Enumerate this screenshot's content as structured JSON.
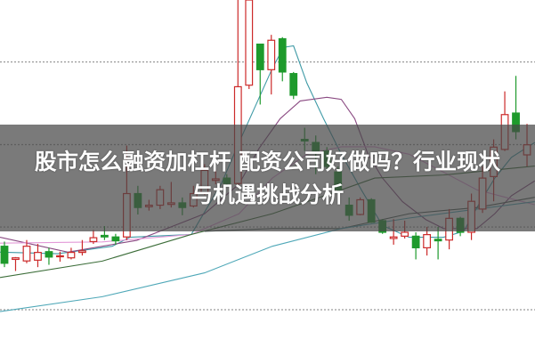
{
  "title": {
    "line1": "股市怎么融资加杠杆 配资公司好做吗？行业现状",
    "line2": "与机遇挑战分析"
  },
  "chart_data": {
    "type": "candlestick",
    "grid": "horizontal-dotted",
    "gridlines": [
      80,
      53.3,
      26.7,
      0
    ],
    "ylim": [
      0,
      100
    ],
    "colors": {
      "up": "#cc2a2a",
      "down": "#1e9a2c",
      "grid": "#9a9a9a"
    },
    "candles": [
      [
        20.5,
        22,
        13.75,
        15
      ],
      [
        16.25,
        17,
        12.5,
        16.75
      ],
      [
        15.75,
        22.5,
        15,
        20.5
      ],
      [
        16,
        21.25,
        13.75,
        18.5
      ],
      [
        18.75,
        20,
        14.5,
        17
      ],
      [
        17.1,
        18.75,
        15.5,
        17.4
      ],
      [
        16.75,
        20,
        16.25,
        18.5
      ],
      [
        18.5,
        22.5,
        17.5,
        19
      ],
      [
        22,
        25.75,
        21.25,
        23.25
      ],
      [
        24,
        27,
        22.5,
        23.5
      ],
      [
        23.5,
        24.5,
        21,
        22.25
      ],
      [
        23.5,
        53,
        22.5,
        37.5
      ],
      [
        37.5,
        40,
        30.75,
        33
      ],
      [
        33.25,
        35.5,
        32,
        33.75
      ],
      [
        33.75,
        40,
        32.5,
        38.75
      ],
      [
        34,
        41.25,
        33,
        34.5
      ],
      [
        34.5,
        36.25,
        30.5,
        33
      ],
      [
        33.5,
        40,
        33,
        37.5
      ],
      [
        37.5,
        47,
        37,
        45
      ],
      [
        41.75,
        45,
        40.5,
        42.25
      ],
      [
        42.5,
        43.75,
        40,
        40.75
      ],
      [
        40.75,
        100,
        40,
        72
      ],
      [
        72.5,
        100,
        71.25,
        100
      ],
      [
        85.75,
        85.75,
        66.25,
        77.5
      ],
      [
        77.5,
        88.75,
        69.5,
        87
      ],
      [
        87.5,
        88,
        73.75,
        76.75
      ],
      [
        76.25,
        76.75,
        68,
        69.25
      ],
      [
        55,
        58.75,
        51.25,
        54.5
      ],
      [
        54,
        56.25,
        43.75,
        51.25
      ],
      [
        51.25,
        52.5,
        45,
        46.25
      ],
      [
        44.5,
        46.25,
        37.5,
        38.75
      ],
      [
        33.75,
        36.25,
        28.75,
        30.5
      ],
      [
        30.75,
        36.25,
        30.5,
        35.5
      ],
      [
        35.5,
        36,
        28,
        28.25
      ],
      [
        28.75,
        29.25,
        24.5,
        25
      ],
      [
        23,
        29.25,
        21,
        23.5
      ],
      [
        23.75,
        28.75,
        23,
        25
      ],
      [
        23.75,
        25,
        16.25,
        20
      ],
      [
        20,
        26.75,
        17.5,
        24.25
      ],
      [
        22.75,
        26.75,
        16.25,
        22.25
      ],
      [
        22.5,
        32.5,
        19.5,
        29.5
      ],
      [
        29.5,
        30,
        23.75,
        25
      ],
      [
        25,
        37.5,
        22.5,
        35
      ],
      [
        32.5,
        46.25,
        31.25,
        42.5
      ],
      [
        43,
        55,
        35,
        52.5
      ],
      [
        51.75,
        70.5,
        51.25,
        63
      ],
      [
        63.5,
        75.5,
        55,
        57.5
      ],
      [
        50,
        60,
        46.25,
        53.25
      ]
    ],
    "moving_averages": [
      {
        "color": "#3f9aa6",
        "points": [
          [
            -0.4,
            18.6
          ],
          [
            4.8,
            18.1
          ],
          [
            9.7,
            20.5
          ],
          [
            11.3,
            23.4
          ],
          [
            16.8,
            24.3
          ],
          [
            19.5,
            40.6
          ],
          [
            21.1,
            54
          ],
          [
            22.3,
            63.6
          ],
          [
            24.1,
            78
          ],
          [
            25.1,
            84.7
          ],
          [
            26,
            85.2
          ],
          [
            27.2,
            73.2
          ],
          [
            28.7,
            61.7
          ],
          [
            30.3,
            50.2
          ],
          [
            32.1,
            38.7
          ],
          [
            34,
            27.2
          ],
          [
            36.4,
            23.4
          ],
          [
            39.5,
            23.4
          ],
          [
            41.3,
            25.3
          ],
          [
            42.5,
            33
          ],
          [
            44.1,
            42.5
          ],
          [
            45.6,
            49.2
          ],
          [
            47.7,
            54
          ]
        ]
      },
      {
        "color": "#8a4a82",
        "points": [
          [
            -0.4,
            23.4
          ],
          [
            5.7,
            18.6
          ],
          [
            11.9,
            22.4
          ],
          [
            18,
            31
          ],
          [
            21.1,
            40.6
          ],
          [
            22.9,
            52.1
          ],
          [
            24.8,
            61.7
          ],
          [
            26.6,
            67.4
          ],
          [
            29,
            68.6
          ],
          [
            30.3,
            67.9
          ],
          [
            31.5,
            61.7
          ],
          [
            32.7,
            50.2
          ],
          [
            34,
            42.5
          ],
          [
            35.8,
            34.9
          ],
          [
            37.9,
            29.1
          ],
          [
            39.5,
            26.2
          ],
          [
            42.5,
            26.2
          ],
          [
            44.1,
            31
          ],
          [
            45.6,
            36.8
          ],
          [
            47.7,
            41.6
          ]
        ]
      },
      {
        "color": "#e39ad8",
        "points": [
          [
            -0.4,
            21.5
          ],
          [
            8.8,
            21.9
          ],
          [
            16.8,
            24.3
          ],
          [
            21.1,
            31
          ],
          [
            24.1,
            42.5
          ],
          [
            27.2,
            50.2
          ],
          [
            30.3,
            52.6
          ],
          [
            33.3,
            52.6
          ],
          [
            36.4,
            50.2
          ],
          [
            39.5,
            44.4
          ],
          [
            42.5,
            38.7
          ],
          [
            45.6,
            35.8
          ],
          [
            47.7,
            33.9
          ]
        ]
      },
      {
        "color": "#3d6e3a",
        "points": [
          [
            -0.4,
            10.4
          ],
          [
            8.8,
            15.7
          ],
          [
            16.8,
            24.3
          ],
          [
            24.1,
            31
          ],
          [
            30.3,
            38.7
          ],
          [
            33.3,
            42.5
          ],
          [
            39.5,
            43.5
          ],
          [
            47.7,
            46.4
          ]
        ]
      },
      {
        "color": "#4b5a55",
        "points": [
          [
            18,
            25.3
          ],
          [
            24.1,
            26.2
          ],
          [
            30.3,
            26.2
          ],
          [
            36.4,
            31
          ],
          [
            42.5,
            33
          ],
          [
            47.7,
            36.3
          ]
        ]
      },
      {
        "color": "#4fa8b8",
        "points": [
          [
            -0.4,
            -0.6
          ],
          [
            8.8,
            4.2
          ],
          [
            18,
            11.9
          ],
          [
            24.1,
            20.5
          ],
          [
            30.3,
            26.2
          ],
          [
            36.4,
            29.6
          ],
          [
            42.5,
            32.5
          ],
          [
            47.7,
            34.9
          ]
        ]
      }
    ]
  }
}
